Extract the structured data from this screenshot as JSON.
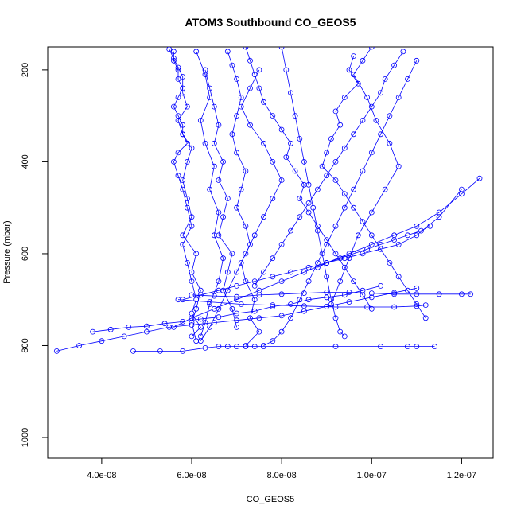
{
  "chart_data": {
    "type": "scatter",
    "title": "ATOM3 Southbound CO_GEOS5",
    "xlabel": "CO_GEOS5",
    "ylabel": "Pressure (mbar)",
    "xlim": [
      2.8e-08,
      1.27e-07
    ],
    "ylim": [
      1045,
      150
    ],
    "y_reversed": true,
    "x_ticks": [
      4e-08,
      6e-08,
      8e-08,
      1e-07,
      1.2e-07
    ],
    "x_tick_labels": [
      "4.0e-08",
      "6.0e-08",
      "8.0e-08",
      "1.0e-07",
      "1.2e-07"
    ],
    "y_ticks": [
      200,
      400,
      600,
      800,
      1000
    ],
    "y_tick_labels": [
      "200",
      "400",
      "600",
      "800",
      "1000"
    ],
    "marker": "open-circle",
    "connected": true,
    "grid": false,
    "legend": "none",
    "series_color": "#0000ff",
    "series": [
      {
        "x": [
          5.6e-08,
          5.6e-08,
          5.7e-08,
          5.7e-08,
          5.8e-08,
          5.7e-08,
          5.6e-08,
          5.7e-08,
          5.8e-08,
          5.8e-08,
          5.9e-08,
          5.7e-08,
          5.6e-08,
          5.7e-08,
          5.8e-08,
          5.9e-08,
          6e-08,
          5.8e-08,
          5.9e-08,
          6e-08,
          6.1e-08,
          6e-08,
          6.2e-08,
          6e-08
        ],
        "y": [
          160,
          180,
          200,
          220,
          240,
          260,
          280,
          300,
          320,
          340,
          360,
          380,
          400,
          430,
          460,
          500,
          540,
          580,
          620,
          660,
          700,
          730,
          760,
          780
        ]
      },
      {
        "x": [
          5.5e-08,
          5.6e-08,
          5.7e-08,
          5.8e-08,
          5.8e-08,
          5.9e-08,
          5.7e-08,
          5.8e-08,
          6e-08,
          5.9e-08,
          5.8e-08,
          5.9e-08,
          6e-08,
          5.8e-08,
          6.1e-08,
          6e-08,
          6.2e-08,
          6.1e-08,
          6e-08,
          6.1e-08
        ],
        "y": [
          155,
          175,
          195,
          215,
          250,
          280,
          310,
          340,
          370,
          400,
          440,
          480,
          520,
          560,
          600,
          640,
          680,
          720,
          750,
          790
        ]
      },
      {
        "x": [
          6.8e-08,
          6.9e-08,
          7e-08,
          7.1e-08,
          7e-08,
          6.9e-08,
          7e-08,
          7.2e-08,
          7.1e-08,
          7e-08,
          7.2e-08,
          7.3e-08,
          7.1e-08,
          7.2e-08,
          7.4e-08,
          7.3e-08,
          7.5e-08,
          7.2e-08
        ],
        "y": [
          160,
          190,
          220,
          260,
          300,
          340,
          380,
          420,
          460,
          500,
          540,
          580,
          620,
          660,
          700,
          740,
          770,
          800
        ]
      },
      {
        "x": [
          7.2e-08,
          7.3e-08,
          7.4e-08,
          7.5e-08,
          7.6e-08,
          7.8e-08,
          8e-08,
          8.2e-08,
          8.1e-08,
          8.3e-08,
          8.5e-08,
          8.4e-08,
          8.6e-08,
          8.8e-08,
          9e-08,
          9.2e-08,
          9.4e-08,
          9.6e-08,
          9.8e-08,
          1e-07
        ],
        "y": [
          150,
          180,
          210,
          240,
          270,
          300,
          330,
          360,
          390,
          420,
          450,
          480,
          510,
          540,
          570,
          600,
          630,
          660,
          690,
          720
        ]
      },
      {
        "x": [
          1.07e-07,
          1.05e-07,
          1.03e-07,
          1.02e-07,
          1e-07,
          9.8e-08,
          9.6e-08,
          9.4e-08,
          9.2e-08,
          9e-08,
          8.8e-08,
          8.6e-08,
          8.4e-08,
          8.2e-08,
          8e-08,
          7.8e-08,
          7.6e-08,
          7.4e-08
        ],
        "y": [
          160,
          190,
          220,
          250,
          280,
          310,
          340,
          370,
          400,
          430,
          460,
          490,
          520,
          550,
          580,
          610,
          640,
          670
        ]
      },
      {
        "x": [
          9.6e-08,
          9.5e-08,
          9.7e-08,
          9.4e-08,
          9.2e-08,
          9.3e-08,
          9.1e-08,
          9e-08,
          8.9e-08,
          9.2e-08,
          9.4e-08,
          9.6e-08,
          9.8e-08,
          1e-07,
          1.02e-07,
          1.04e-07,
          1.06e-07,
          1.08e-07,
          1.1e-07,
          1.12e-07
        ],
        "y": [
          170,
          200,
          230,
          260,
          290,
          320,
          350,
          380,
          410,
          440,
          470,
          500,
          530,
          560,
          590,
          620,
          650,
          680,
          710,
          740
        ]
      },
      {
        "x": [
          6.3e-08,
          6.4e-08,
          6.5e-08,
          6.6e-08,
          6.5e-08,
          6.7e-08,
          6.6e-08,
          6.8e-08,
          6.7e-08,
          6.6e-08,
          6.9e-08,
          6.8e-08,
          6.7e-08,
          6.9e-08,
          7e-08
        ],
        "y": [
          200,
          240,
          280,
          320,
          360,
          400,
          440,
          480,
          520,
          560,
          600,
          640,
          680,
          720,
          760
        ]
      },
      {
        "x": [
          3e-08,
          3.5e-08,
          4e-08,
          4.5e-08,
          5e-08,
          5.5e-08,
          6e-08,
          6.5e-08,
          7e-08,
          7.5e-08,
          8e-08,
          8.5e-08,
          9e-08,
          9.5e-08,
          1e-07,
          1.05e-07,
          1.1e-07
        ],
        "y": [
          812,
          800,
          790,
          780,
          770,
          760,
          755,
          750,
          745,
          740,
          735,
          725,
          715,
          705,
          695,
          685,
          675
        ]
      },
      {
        "x": [
          3.8e-08,
          4.2e-08,
          4.6e-08,
          5e-08,
          5.4e-08,
          5.8e-08,
          6.2e-08,
          6.6e-08,
          7e-08,
          7.4e-08,
          7.8e-08,
          8.2e-08,
          8.6e-08,
          9e-08,
          9.4e-08,
          9.8e-08,
          1.02e-07
        ],
        "y": [
          770,
          765,
          760,
          758,
          752,
          748,
          742,
          738,
          730,
          725,
          715,
          710,
          700,
          695,
          690,
          680,
          670
        ]
      },
      {
        "x": [
          4.7e-08,
          5.3e-08,
          5.8e-08,
          6.3e-08,
          6.6e-08,
          6.8e-08,
          7e-08,
          7.2e-08,
          7.4e-08,
          7.6e-08,
          9.2e-08,
          1.02e-07,
          1.08e-07,
          1.1e-07,
          1.14e-07
        ],
        "y": [
          812,
          812,
          812,
          805,
          802,
          802,
          802,
          802,
          802,
          802,
          802,
          802,
          802,
          802,
          802
        ]
      },
      {
        "x": [
          5.6e-08,
          6e-08,
          6.5e-08,
          7e-08,
          7.5e-08,
          8e-08,
          8.5e-08,
          9e-08,
          9.5e-08,
          1e-07,
          1.05e-07,
          1.1e-07,
          1.15e-07,
          1.2e-07,
          1.24e-07
        ],
        "y": [
          760,
          740,
          720,
          700,
          680,
          660,
          640,
          620,
          600,
          580,
          560,
          540,
          510,
          470,
          436
        ]
      },
      {
        "x": [
          5.8e-08,
          6.2e-08,
          6.6e-08,
          7e-08,
          7.4e-08,
          7.8e-08,
          8.2e-08,
          8.6e-08,
          9e-08,
          9.4e-08,
          9.8e-08,
          1.02e-07,
          1.06e-07,
          1.1e-07,
          1.15e-07,
          1.2e-07
        ],
        "y": [
          700,
          690,
          680,
          670,
          660,
          650,
          640,
          630,
          620,
          610,
          600,
          590,
          580,
          560,
          520,
          460
        ]
      },
      {
        "x": [
          6e-08,
          6.5e-08,
          7e-08,
          7.5e-08,
          8e-08,
          8.5e-08,
          9e-08,
          9.5e-08,
          1e-07,
          1.05e-07,
          1.1e-07,
          1.15e-07,
          1.2e-07,
          1.22e-07
        ],
        "y": [
          690,
          692,
          694,
          690,
          688,
          686,
          684,
          684,
          686,
          688,
          688,
          688,
          688,
          688
        ]
      },
      {
        "x": [
          1.1e-07,
          1.08e-07,
          1.06e-07,
          1.04e-07,
          1.02e-07,
          1e-07,
          9.8e-08,
          9.6e-08,
          9.4e-08,
          9.2e-08,
          9e-08,
          8.8e-08,
          8.6e-08,
          8.4e-08,
          8.2e-08,
          8e-08,
          7.8e-08,
          7.6e-08
        ],
        "y": [
          180,
          220,
          260,
          300,
          340,
          380,
          420,
          460,
          500,
          540,
          580,
          620,
          660,
          700,
          740,
          770,
          790,
          800
        ]
      },
      {
        "x": [
          8e-08,
          8.1e-08,
          8.2e-08,
          8.3e-08,
          8.4e-08,
          8.5e-08,
          8.6e-08,
          8.7e-08,
          8.8e-08,
          8.9e-08,
          9e-08,
          9.1e-08,
          9.2e-08,
          9.3e-08,
          9.4e-08
        ],
        "y": [
          150,
          200,
          250,
          300,
          350,
          400,
          450,
          500,
          550,
          600,
          650,
          700,
          740,
          770,
          780
        ]
      },
      {
        "x": [
          7.5e-08,
          7.3e-08,
          7.1e-08,
          7.3e-08,
          7.6e-08,
          7.8e-08,
          8e-08,
          7.8e-08,
          7.6e-08,
          7.4e-08,
          7.2e-08,
          7e-08,
          6.8e-08,
          6.6e-08,
          6.4e-08,
          6.2e-08
        ],
        "y": [
          200,
          240,
          280,
          320,
          360,
          400,
          440,
          480,
          520,
          560,
          600,
          640,
          680,
          720,
          760,
          790
        ]
      },
      {
        "x": [
          1e-07,
          9.8e-08,
          9.6e-08,
          9.9e-08,
          1.01e-07,
          1.04e-07,
          1.06e-07,
          1.03e-07,
          1e-07,
          9.7e-08,
          9.5e-08,
          9.3e-08,
          9.1e-08
        ],
        "y": [
          150,
          180,
          210,
          260,
          310,
          360,
          410,
          460,
          510,
          560,
          610,
          660,
          710
        ]
      },
      {
        "x": [
          6.1e-08,
          6.3e-08,
          6.4e-08,
          6.2e-08,
          6.3e-08,
          6.5e-08,
          6.4e-08,
          6.6e-08,
          6.5e-08,
          6.7e-08,
          6.6e-08,
          6.4e-08,
          6.3e-08,
          6.2e-08
        ],
        "y": [
          160,
          210,
          260,
          310,
          360,
          410,
          460,
          510,
          560,
          610,
          660,
          710,
          750,
          780
        ]
      },
      {
        "x": [
          8.8e-08,
          9e-08,
          9.3e-08,
          9.6e-08,
          9.9e-08,
          1.02e-07,
          1.05e-07,
          1.08e-07,
          1.11e-07,
          1.13e-07
        ],
        "y": [
          630,
          620,
          610,
          600,
          590,
          580,
          570,
          560,
          550,
          540
        ]
      },
      {
        "x": [
          5.7e-08,
          6.4e-08,
          7.1e-08,
          7.8e-08,
          8.5e-08,
          9.2e-08,
          9.9e-08,
          1.05e-07,
          1.1e-07,
          1.12e-07
        ],
        "y": [
          700,
          705,
          710,
          712,
          714,
          716,
          716,
          716,
          714,
          712
        ]
      }
    ]
  }
}
